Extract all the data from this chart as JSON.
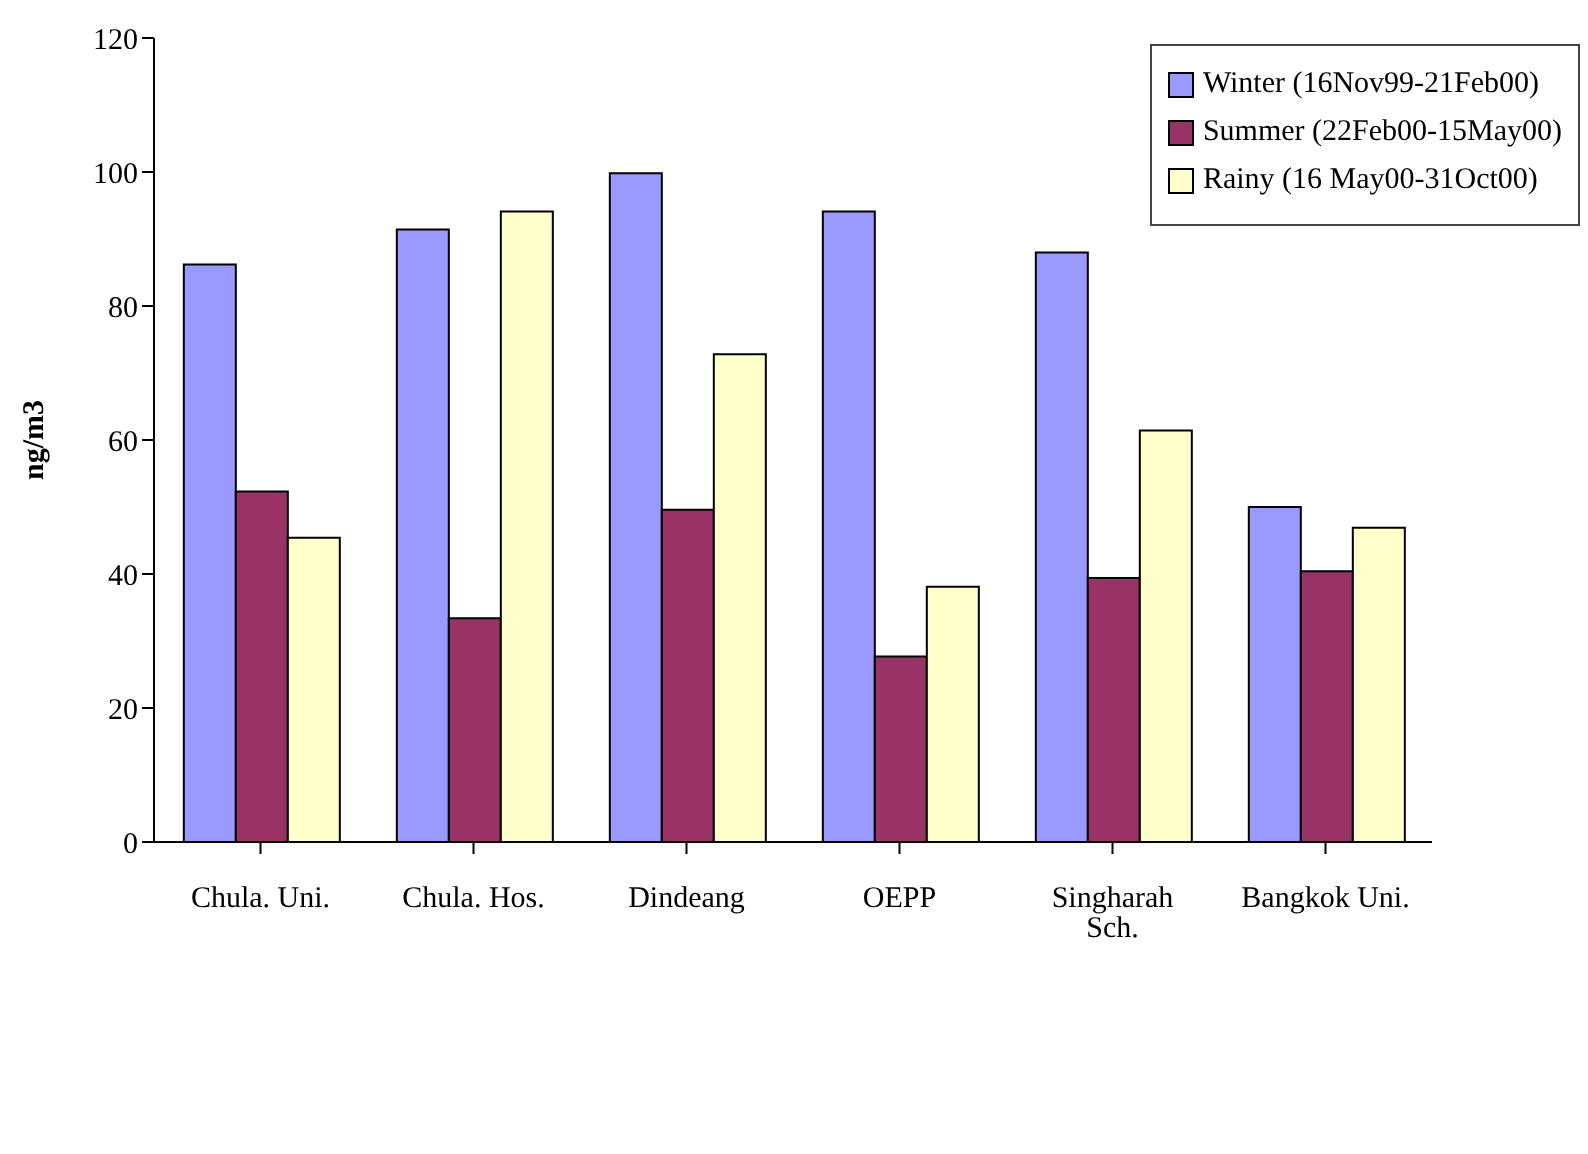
{
  "chart_data": {
    "type": "bar",
    "ylabel": "ng/m3",
    "categories": [
      "Chula. Uni.",
      "Chula.  Hos.",
      "Dindeang",
      "OEPP",
      "Singharah Sch.",
      "Bangkok Uni."
    ],
    "series": [
      {
        "name": "Winter (16Nov99-21Feb00)",
        "color": "#9999ff",
        "values": [
          86.2,
          91.4,
          99.8,
          94.1,
          88.0,
          50.0
        ]
      },
      {
        "name": "Summer (22Feb00-15May00)",
        "color": "#993366",
        "values": [
          52.3,
          33.4,
          49.6,
          27.7,
          39.4,
          40.4
        ]
      },
      {
        "name": "Rainy (16 May00-31Oct00)",
        "color": "#ffffcc",
        "values": [
          45.4,
          94.1,
          72.8,
          38.1,
          61.4,
          46.9
        ]
      }
    ],
    "ylim": [
      0,
      120
    ],
    "yticks": [
      0,
      20,
      40,
      60,
      80,
      100,
      120
    ],
    "grid": false,
    "legend": "top right"
  }
}
